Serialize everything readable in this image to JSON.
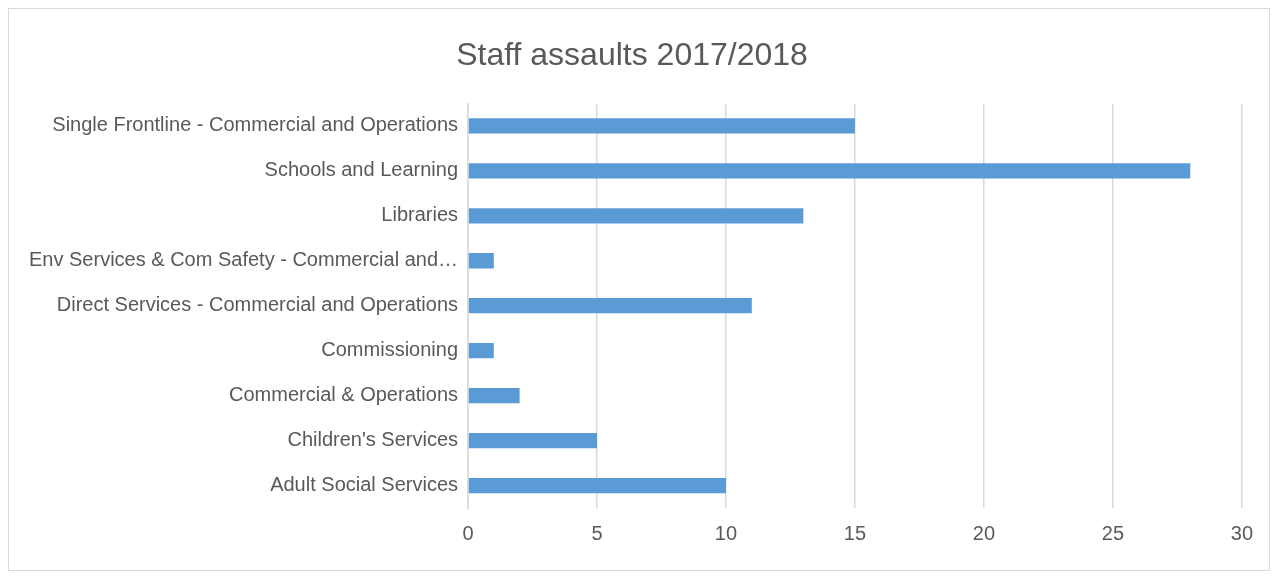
{
  "chart_data": {
    "type": "bar",
    "orientation": "horizontal",
    "title": "Staff assaults 2017/2018",
    "categories": [
      "Single Frontline - Commercial and Operations",
      "Schools and Learning",
      "Libraries",
      "Env Services & Com Safety - Commercial and…",
      "Direct Services - Commercial and Operations",
      "Commissioning",
      "Commercial & Operations",
      "Children's Services",
      "Adult Social Services"
    ],
    "values": [
      15,
      28,
      13,
      1,
      11,
      1,
      2,
      5,
      10
    ],
    "color": "#5b9bd5",
    "xlim": [
      0,
      30
    ],
    "xticks": [
      0,
      5,
      10,
      15,
      20,
      25,
      30
    ],
    "grid": "x",
    "legend": false
  }
}
